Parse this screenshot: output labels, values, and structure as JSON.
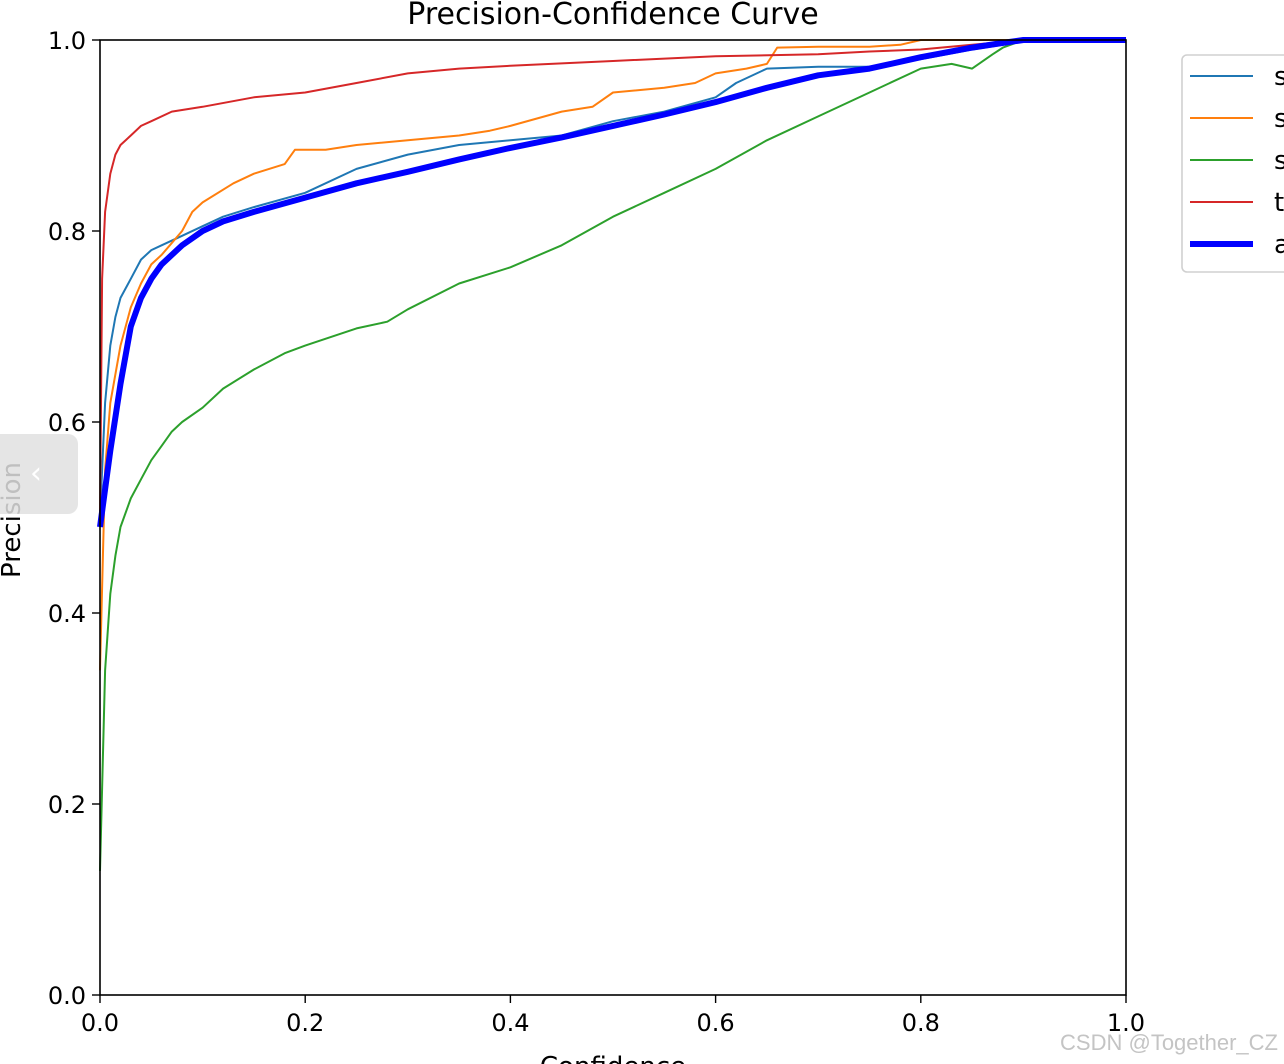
{
  "chart_data": {
    "type": "line",
    "title": "Precision-Confidence Curve",
    "xlabel": "Confidence",
    "ylabel": "Precision",
    "xlim": [
      0.0,
      1.0
    ],
    "ylim": [
      0.0,
      1.0
    ],
    "xticks": [
      "0.0",
      "0.2",
      "0.4",
      "0.6",
      "0.8",
      "1.0"
    ],
    "yticks": [
      "0.0",
      "0.2",
      "0.4",
      "0.6",
      "0.8",
      "1.0"
    ],
    "grid": false,
    "legend_position": "outside-top-right",
    "series": [
      {
        "name": "s",
        "color": "#1f77b4",
        "x": [
          0.0,
          0.005,
          0.01,
          0.015,
          0.02,
          0.03,
          0.04,
          0.05,
          0.06,
          0.08,
          0.1,
          0.12,
          0.15,
          0.2,
          0.25,
          0.3,
          0.35,
          0.4,
          0.45,
          0.5,
          0.55,
          0.6,
          0.62,
          0.65,
          0.7,
          0.75,
          0.8,
          0.85,
          0.88,
          0.9,
          1.0
        ],
        "y": [
          0.5,
          0.62,
          0.68,
          0.71,
          0.73,
          0.75,
          0.77,
          0.78,
          0.785,
          0.795,
          0.805,
          0.815,
          0.825,
          0.84,
          0.865,
          0.88,
          0.89,
          0.895,
          0.9,
          0.915,
          0.925,
          0.94,
          0.955,
          0.97,
          0.972,
          0.972,
          0.98,
          0.99,
          0.995,
          1.0,
          1.0
        ]
      },
      {
        "name": "s",
        "color": "#ff7f0e",
        "x": [
          0.0,
          0.005,
          0.01,
          0.02,
          0.03,
          0.04,
          0.05,
          0.06,
          0.08,
          0.09,
          0.1,
          0.13,
          0.15,
          0.18,
          0.19,
          0.22,
          0.25,
          0.3,
          0.35,
          0.38,
          0.4,
          0.45,
          0.48,
          0.5,
          0.55,
          0.58,
          0.6,
          0.63,
          0.65,
          0.66,
          0.7,
          0.75,
          0.78,
          0.8,
          0.9,
          1.0
        ],
        "y": [
          0.34,
          0.55,
          0.62,
          0.68,
          0.72,
          0.745,
          0.765,
          0.775,
          0.8,
          0.82,
          0.83,
          0.85,
          0.86,
          0.87,
          0.885,
          0.885,
          0.89,
          0.895,
          0.9,
          0.905,
          0.91,
          0.925,
          0.93,
          0.945,
          0.95,
          0.955,
          0.965,
          0.97,
          0.975,
          0.992,
          0.993,
          0.993,
          0.995,
          1.0,
          1.0,
          1.0
        ]
      },
      {
        "name": "s",
        "color": "#2ca02c",
        "x": [
          0.0,
          0.005,
          0.01,
          0.015,
          0.02,
          0.03,
          0.04,
          0.05,
          0.06,
          0.07,
          0.08,
          0.1,
          0.12,
          0.15,
          0.18,
          0.2,
          0.25,
          0.28,
          0.3,
          0.35,
          0.4,
          0.45,
          0.5,
          0.55,
          0.6,
          0.65,
          0.7,
          0.75,
          0.8,
          0.83,
          0.85,
          0.87,
          0.88,
          0.9,
          1.0
        ],
        "y": [
          0.13,
          0.34,
          0.42,
          0.46,
          0.49,
          0.52,
          0.54,
          0.56,
          0.575,
          0.59,
          0.6,
          0.615,
          0.635,
          0.655,
          0.672,
          0.68,
          0.698,
          0.705,
          0.718,
          0.745,
          0.762,
          0.785,
          0.815,
          0.84,
          0.865,
          0.895,
          0.92,
          0.945,
          0.97,
          0.975,
          0.97,
          0.985,
          0.992,
          1.0,
          1.0
        ]
      },
      {
        "name": "t",
        "color": "#d62728",
        "x": [
          0.0,
          0.002,
          0.005,
          0.01,
          0.015,
          0.02,
          0.03,
          0.04,
          0.05,
          0.07,
          0.1,
          0.15,
          0.2,
          0.25,
          0.3,
          0.35,
          0.4,
          0.5,
          0.6,
          0.7,
          0.75,
          0.8,
          0.85,
          0.9,
          1.0
        ],
        "y": [
          0.5,
          0.75,
          0.82,
          0.86,
          0.88,
          0.89,
          0.9,
          0.91,
          0.915,
          0.925,
          0.93,
          0.94,
          0.945,
          0.955,
          0.965,
          0.97,
          0.973,
          0.978,
          0.983,
          0.985,
          0.988,
          0.99,
          0.995,
          1.0,
          1.0
        ]
      },
      {
        "name": "a",
        "color": "#0000ff",
        "x": [
          0.0,
          0.01,
          0.02,
          0.03,
          0.04,
          0.05,
          0.06,
          0.08,
          0.1,
          0.12,
          0.15,
          0.2,
          0.25,
          0.3,
          0.35,
          0.4,
          0.45,
          0.5,
          0.55,
          0.6,
          0.65,
          0.7,
          0.75,
          0.8,
          0.85,
          0.88,
          0.9,
          1.0
        ],
        "y": [
          0.49,
          0.57,
          0.64,
          0.7,
          0.73,
          0.75,
          0.765,
          0.785,
          0.8,
          0.81,
          0.82,
          0.835,
          0.85,
          0.862,
          0.875,
          0.887,
          0.898,
          0.91,
          0.922,
          0.935,
          0.95,
          0.963,
          0.97,
          0.982,
          0.992,
          0.997,
          1.0,
          1.0
        ]
      }
    ]
  },
  "watermark": "CSDN @Together_CZ"
}
